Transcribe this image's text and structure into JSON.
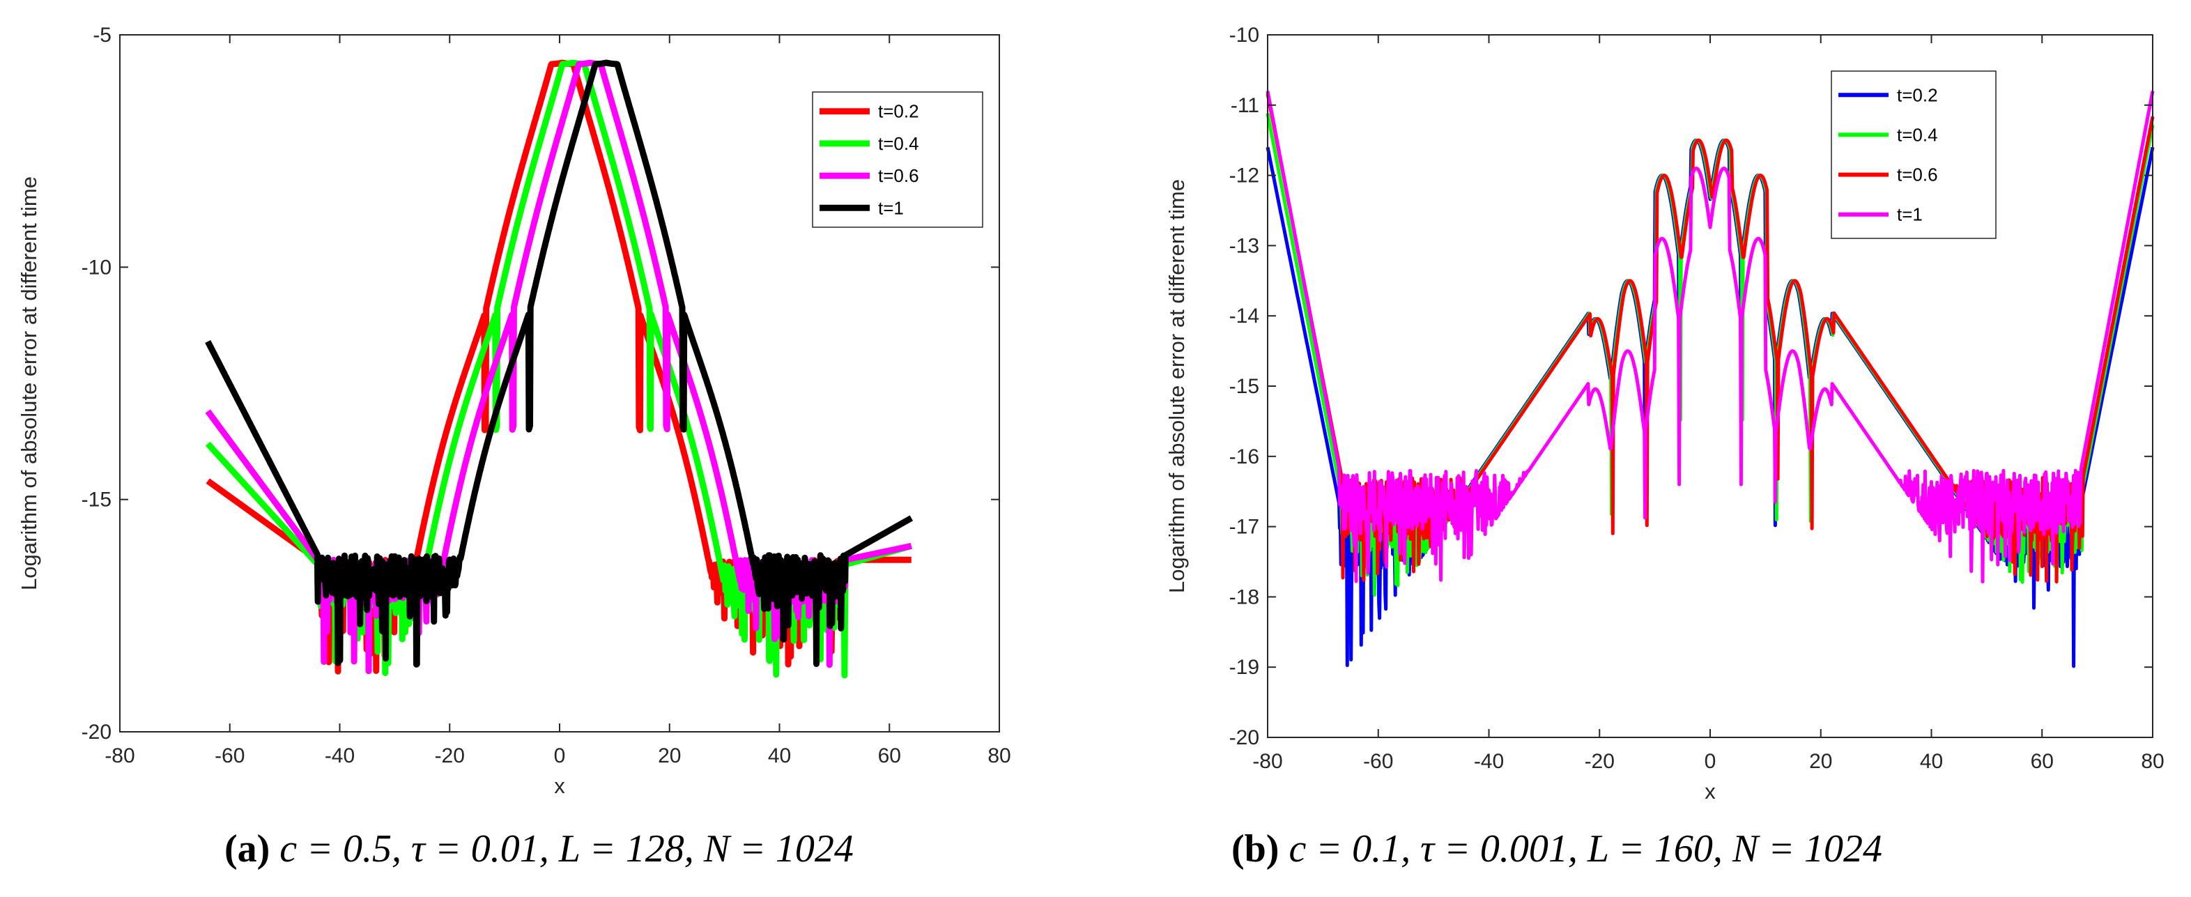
{
  "chart_data": [
    {
      "type": "line",
      "panel": "a",
      "xlabel": "x",
      "ylabel": "Logarithm of absolute error at different time",
      "xlim": [
        -80,
        80
      ],
      "ylim": [
        -20,
        -5
      ],
      "xticks": [
        -80,
        -60,
        -40,
        -20,
        0,
        20,
        40,
        60,
        80
      ],
      "yticks": [
        -5,
        -10,
        -15,
        -20
      ],
      "xtick_labels": [
        "-80",
        "-60",
        "-40",
        "-20",
        "0",
        "20",
        "40",
        "60",
        "80"
      ],
      "ytick_labels": [
        "-5",
        "-10",
        "-15",
        "-20"
      ],
      "legend_position": "top-right",
      "series": [
        {
          "name": "t=0.2",
          "color": "#ff0000",
          "x_start": -64,
          "x_end": 64,
          "noise_floor": -16.3,
          "peak_x": 0.5,
          "peak_y": -5.6,
          "slope": 0.8,
          "lobe_spacing": 3.2,
          "lobe_fall": 0.3,
          "left_start_y": -14.6,
          "right_end_y": -16.3
        },
        {
          "name": "t=0.4",
          "color": "#00ff00",
          "x_start": -64,
          "x_end": 64,
          "noise_floor": -16.4,
          "peak_x": 2.5,
          "peak_y": -5.6,
          "slope": 0.8,
          "lobe_spacing": 3.2,
          "lobe_fall": 0.3,
          "left_start_y": -13.8,
          "right_end_y": -16.0
        },
        {
          "name": "t=0.6",
          "color": "#ff00ff",
          "x_start": -64,
          "x_end": 64,
          "noise_floor": -16.3,
          "peak_x": 5.5,
          "peak_y": -5.6,
          "slope": 0.8,
          "lobe_spacing": 3.2,
          "lobe_fall": 0.3,
          "left_start_y": -13.1,
          "right_end_y": -16.0
        },
        {
          "name": "t=1",
          "color": "#000000",
          "x_start": -64,
          "x_end": 64,
          "noise_floor": -16.2,
          "peak_x": 8.5,
          "peak_y": -5.6,
          "slope": 0.8,
          "lobe_spacing": 3.2,
          "lobe_fall": 0.3,
          "left_start_y": -11.6,
          "right_end_y": -15.4
        }
      ]
    },
    {
      "type": "line",
      "panel": "b",
      "xlabel": "x",
      "ylabel": "Logarithm of absolute error at different time",
      "xlim": [
        -80,
        80
      ],
      "ylim": [
        -20,
        -10
      ],
      "xticks": [
        -80,
        -60,
        -40,
        -20,
        0,
        20,
        40,
        60,
        80
      ],
      "yticks": [
        -10,
        -11,
        -12,
        -13,
        -14,
        -15,
        -16,
        -17,
        -18,
        -19,
        -20
      ],
      "xtick_labels": [
        "-80",
        "-60",
        "-40",
        "-20",
        "0",
        "20",
        "40",
        "60",
        "80"
      ],
      "ytick_labels": [
        "-10",
        "-11",
        "-12",
        "-13",
        "-14",
        "-15",
        "-16",
        "-17",
        "-18",
        "-19",
        "-20"
      ],
      "legend_position": "top-right",
      "series": [
        {
          "name": "t=0.2",
          "color": "#0000ff",
          "noise_floor": -16.7,
          "peak_y": -11.5,
          "shift": 0,
          "lobe_peaks": [
            -11.5,
            -12.0,
            -13.5
          ],
          "lobe_zeros": [
            0.5,
            6.5,
            16.0
          ],
          "edge_y": -11.6
        },
        {
          "name": "t=0.4",
          "color": "#00ff00",
          "noise_floor": -16.5,
          "peak_y": -11.5,
          "shift": 0.2,
          "lobe_peaks": [
            -11.5,
            -12.0,
            -13.5
          ],
          "lobe_zeros": [
            0.5,
            6.5,
            16.0
          ],
          "edge_y": -11.2
        },
        {
          "name": "t=0.6",
          "color": "#ff0000",
          "noise_floor": -16.3,
          "peak_y": -11.5,
          "shift": 0.4,
          "lobe_peaks": [
            -11.5,
            -12.0,
            -13.5
          ],
          "lobe_zeros": [
            0.5,
            6.5,
            16.0
          ],
          "edge_y": -11.0
        },
        {
          "name": "t=1",
          "color": "#ff00ff",
          "noise_floor": -16.2,
          "peak_y": -11.9,
          "shift": 0,
          "lobe_peaks": [
            -11.9,
            -12.9,
            -14.5
          ],
          "lobe_zeros": [
            1.5,
            5.0,
            17.0
          ],
          "edge_y": -10.8
        }
      ]
    }
  ],
  "captions": {
    "a": {
      "label": "(a)",
      "text": " c = 0.5, τ = 0.01, L = 128, N = 1024"
    },
    "b": {
      "label": "(b)",
      "text": " c = 0.1, τ = 0.001, L = 160, N = 1024"
    }
  }
}
